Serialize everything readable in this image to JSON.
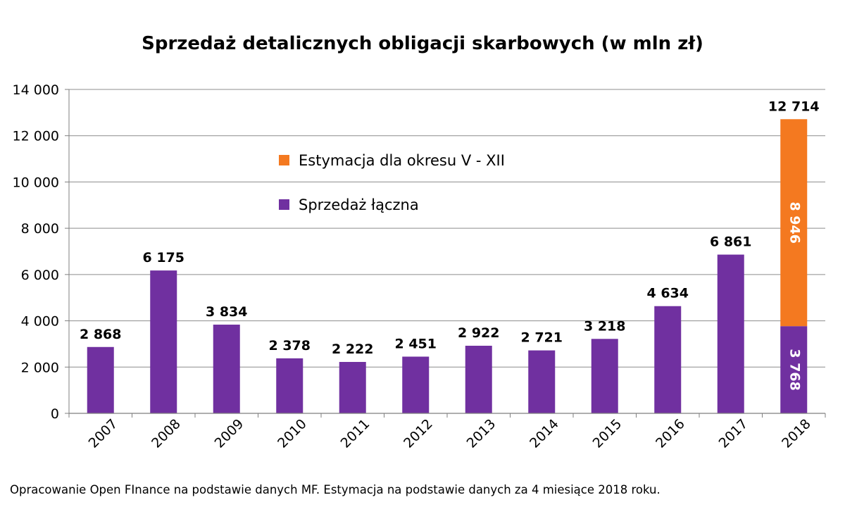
{
  "chart_data": {
    "type": "bar",
    "stacked": true,
    "title": "Sprzedaż detalicznych obligacji skarbowych (w mln zł)",
    "categories": [
      "2007",
      "2008",
      "2009",
      "2010",
      "2011",
      "2012",
      "2013",
      "2014",
      "2015",
      "2016",
      "2017",
      "2018"
    ],
    "series": [
      {
        "name": "Sprzedaż łączna",
        "color": "#7030a0",
        "values": [
          2868,
          6175,
          3834,
          2378,
          2222,
          2451,
          2922,
          2721,
          3218,
          4634,
          6861,
          3768
        ],
        "labels": [
          "2 868",
          "6 175",
          "3 834",
          "2 378",
          "2 222",
          "2 451",
          "2 922",
          "2 721",
          "3 218",
          "4 634",
          "6 861",
          "3 768"
        ]
      },
      {
        "name": "Estymacja dla okresu V - XII",
        "color": "#f47920",
        "values": [
          null,
          null,
          null,
          null,
          null,
          null,
          null,
          null,
          null,
          null,
          null,
          8946
        ],
        "labels": [
          "",
          "",
          "",
          "",
          "",
          "",
          "",
          "",
          "",
          "",
          "",
          "8 946"
        ]
      }
    ],
    "totals": [
      {
        "category": "2018",
        "value": 12714,
        "label": "12 714"
      }
    ],
    "ylim": [
      0,
      14000
    ],
    "yticks": [
      0,
      2000,
      4000,
      6000,
      8000,
      10000,
      12000,
      14000
    ],
    "ytick_labels": [
      "0",
      "2 000",
      "4 000",
      "6 000",
      "8 000",
      "10 000",
      "12 000",
      "14 000"
    ],
    "grid": true,
    "legend_position": "top-center",
    "xlabel": "",
    "ylabel": ""
  },
  "footnote": "Opracowanie Open FInance na podstawie danych MF. Estymacja na podstawie danych za 4 miesiące 2018 roku."
}
